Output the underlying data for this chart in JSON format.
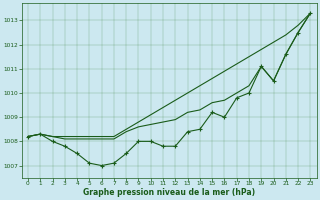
{
  "xlabel": "Graphe pression niveau de la mer (hPa)",
  "background_color": "#cce8f0",
  "line_color": "#1a5c1a",
  "xlim": [
    -0.5,
    23.5
  ],
  "ylim": [
    1006.5,
    1013.7
  ],
  "yticks": [
    1007,
    1008,
    1009,
    1010,
    1011,
    1012,
    1013
  ],
  "xticks": [
    0,
    1,
    2,
    3,
    4,
    5,
    6,
    7,
    8,
    9,
    10,
    11,
    12,
    13,
    14,
    15,
    16,
    17,
    18,
    19,
    20,
    21,
    22,
    23
  ],
  "series": [
    {
      "y": [
        1008.2,
        1008.3,
        1008.0,
        1007.8,
        1007.5,
        1007.1,
        1007.0,
        1007.1,
        1007.5,
        1008.0,
        1008.0,
        1007.8,
        1007.8,
        1008.4,
        1008.5,
        1009.2,
        1009.0,
        1009.8,
        1010.0,
        1011.1,
        1010.5,
        1011.6,
        1012.5,
        1013.3
      ],
      "marker": true
    },
    {
      "y": [
        1008.2,
        1008.3,
        1008.2,
        1008.2,
        1008.2,
        1008.2,
        1008.2,
        1008.2,
        1008.5,
        1008.8,
        1009.1,
        1009.4,
        1009.7,
        1010.0,
        1010.3,
        1010.6,
        1010.9,
        1011.2,
        1011.5,
        1011.8,
        1012.1,
        1012.4,
        1012.8,
        1013.3
      ],
      "marker": false
    },
    {
      "y": [
        1008.2,
        1008.3,
        1008.2,
        1008.1,
        1008.1,
        1008.1,
        1008.1,
        1008.1,
        1008.4,
        1008.6,
        1008.7,
        1008.8,
        1008.9,
        1009.2,
        1009.3,
        1009.6,
        1009.7,
        1010.0,
        1010.3,
        1011.1,
        1010.5,
        1011.6,
        1012.5,
        1013.3
      ],
      "marker": false
    }
  ]
}
